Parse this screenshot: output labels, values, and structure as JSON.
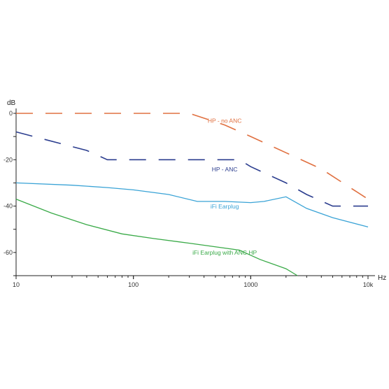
{
  "chart_data": {
    "type": "line",
    "title": "",
    "xlabel": "Hz",
    "ylabel": "dB",
    "x_scale": "log",
    "xlim": [
      10,
      10000
    ],
    "ylim": [
      -70,
      0
    ],
    "grid": false,
    "x_ticks": [
      {
        "value": 10,
        "label": "10"
      },
      {
        "value": 100,
        "label": "100"
      },
      {
        "value": 1000,
        "label": "1000"
      },
      {
        "value": 10000,
        "label": "10k"
      }
    ],
    "y_ticks": [
      {
        "value": 0,
        "label": "0"
      },
      {
        "value": -20,
        "label": "-20"
      },
      {
        "value": -40,
        "label": "-40"
      },
      {
        "value": -60,
        "label": "-60"
      }
    ],
    "series": [
      {
        "name": "HP - no ANC",
        "color": "#e07040",
        "dash": true,
        "label_pos": [
          600,
          -4
        ],
        "x": [
          10,
          300,
          600,
          1000,
          2000,
          4000,
          10000
        ],
        "y": [
          0,
          0,
          -5,
          -10,
          -17,
          -24,
          -37
        ]
      },
      {
        "name": "HP - ANC",
        "color": "#2c3e8f",
        "dash": true,
        "label_pos": [
          600,
          -25
        ],
        "x": [
          10,
          40,
          60,
          100,
          200,
          400,
          800,
          1000,
          2000,
          3000,
          5000,
          10000
        ],
        "y": [
          -8,
          -16,
          -20,
          -20,
          -20,
          -20,
          -20,
          -23,
          -30,
          -35,
          -40,
          -40
        ]
      },
      {
        "name": "iFi Earplug",
        "color": "#3aa3d6",
        "dash": false,
        "label_pos": [
          600,
          -41
        ],
        "x": [
          10,
          30,
          60,
          100,
          200,
          350,
          600,
          1000,
          1300,
          2000,
          3000,
          5000,
          10000
        ],
        "y": [
          -30,
          -31,
          -32,
          -33,
          -35,
          -38,
          -38,
          -38.5,
          -38,
          -36,
          -41,
          -45,
          -49
        ]
      },
      {
        "name": "iFi Earplug with ANC HP",
        "color": "#3aaa48",
        "dash": false,
        "label_pos": [
          600,
          -61
        ],
        "x": [
          10,
          20,
          40,
          80,
          150,
          300,
          800,
          1200,
          2000,
          2500
        ],
        "y": [
          -37,
          -43,
          -48,
          -52,
          -54,
          -56,
          -59,
          -63,
          -67,
          -70
        ]
      }
    ]
  }
}
